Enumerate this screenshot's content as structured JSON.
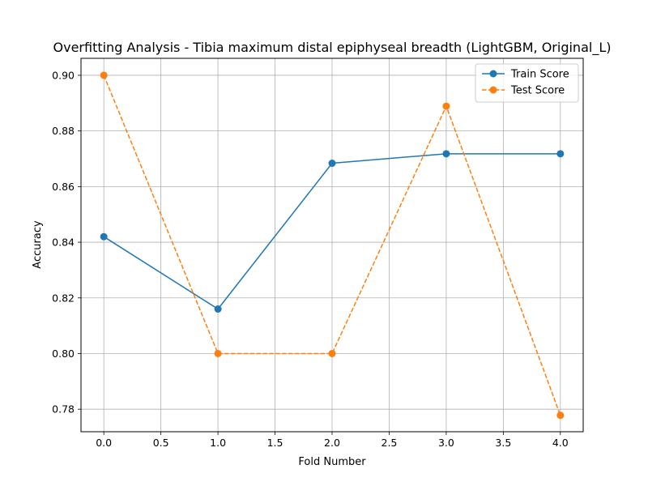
{
  "chart_data": {
    "type": "line",
    "title": "Overfitting Analysis - Tibia maximum distal epiphyseal breadth (LightGBM, Original_L)",
    "xlabel": "Fold Number",
    "ylabel": "Accuracy",
    "x": [
      0,
      1,
      2,
      3,
      4
    ],
    "xlim": [
      -0.2,
      4.2
    ],
    "ylim": [
      0.7719,
      0.9061
    ],
    "xticks": [
      "0.0",
      "0.5",
      "1.0",
      "1.5",
      "2.0",
      "2.5",
      "3.0",
      "3.5",
      "4.0"
    ],
    "yticks": [
      "0.78",
      "0.80",
      "0.82",
      "0.84",
      "0.86",
      "0.88",
      "0.90"
    ],
    "grid": true,
    "legend_position": "top-right",
    "series": [
      {
        "name": "Train Score",
        "values": [
          0.842,
          0.816,
          0.8684,
          0.8718,
          0.8718
        ],
        "color": "#1f77b4",
        "linestyle": "solid",
        "marker": "circle"
      },
      {
        "name": "Test Score",
        "values": [
          0.9,
          0.8,
          0.8,
          0.8889,
          0.7778
        ],
        "color": "#ff7f0e",
        "linestyle": "dashed",
        "marker": "circle"
      }
    ]
  }
}
